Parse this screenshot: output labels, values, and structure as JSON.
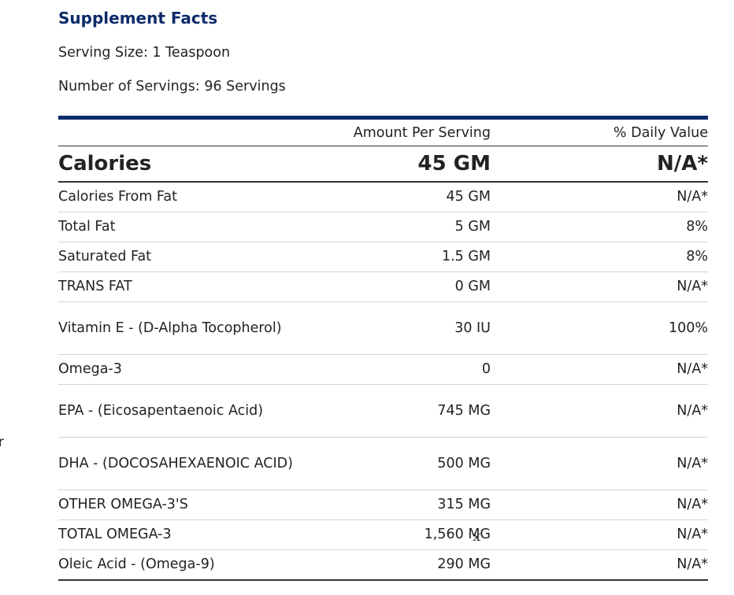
{
  "stray_char": "r",
  "title": "Supplement Facts",
  "serving_size": "Serving Size: 1 Teaspoon",
  "servings": "Number of Servings: 96 Servings",
  "headers": {
    "amount": "Amount Per Serving",
    "daily": "% Daily Value"
  },
  "calories": {
    "name": "Calories",
    "amount": "45 GM",
    "daily": "N/A*"
  },
  "rows": [
    {
      "name": "Calories From Fat",
      "amount": "45 GM",
      "daily": "N/A*"
    },
    {
      "name": "Total Fat",
      "amount": "5 GM",
      "daily": "8%"
    },
    {
      "name": "Saturated Fat",
      "amount": "1.5 GM",
      "daily": "8%"
    },
    {
      "name": "TRANS FAT",
      "amount": "0 GM",
      "daily": "N/A*"
    },
    {
      "name": "Vitamin E  - (D-Alpha Tocopherol)",
      "amount": "30 IU",
      "daily": "100%"
    },
    {
      "name": "Omega-3",
      "amount": "0",
      "daily": "N/A*"
    },
    {
      "name": "EPA  - (Eicosapentaenoic Acid)",
      "amount": "745 MG",
      "daily": "N/A*"
    },
    {
      "name": "DHA  - (DOCOSAHEXAENOIC ACID)",
      "amount": "500 MG",
      "daily": "N/A*"
    },
    {
      "name": "OTHER OMEGA-3'S",
      "amount": "315 MG",
      "daily": "N/A*"
    },
    {
      "name": "TOTAL OMEGA-3",
      "amount": "1,560 MG",
      "daily": "N/A*"
    },
    {
      "name": "Oleic Acid  - (Omega-9)",
      "amount": "290 MG",
      "daily": "N/A*"
    }
  ],
  "overlay_mark": "x"
}
